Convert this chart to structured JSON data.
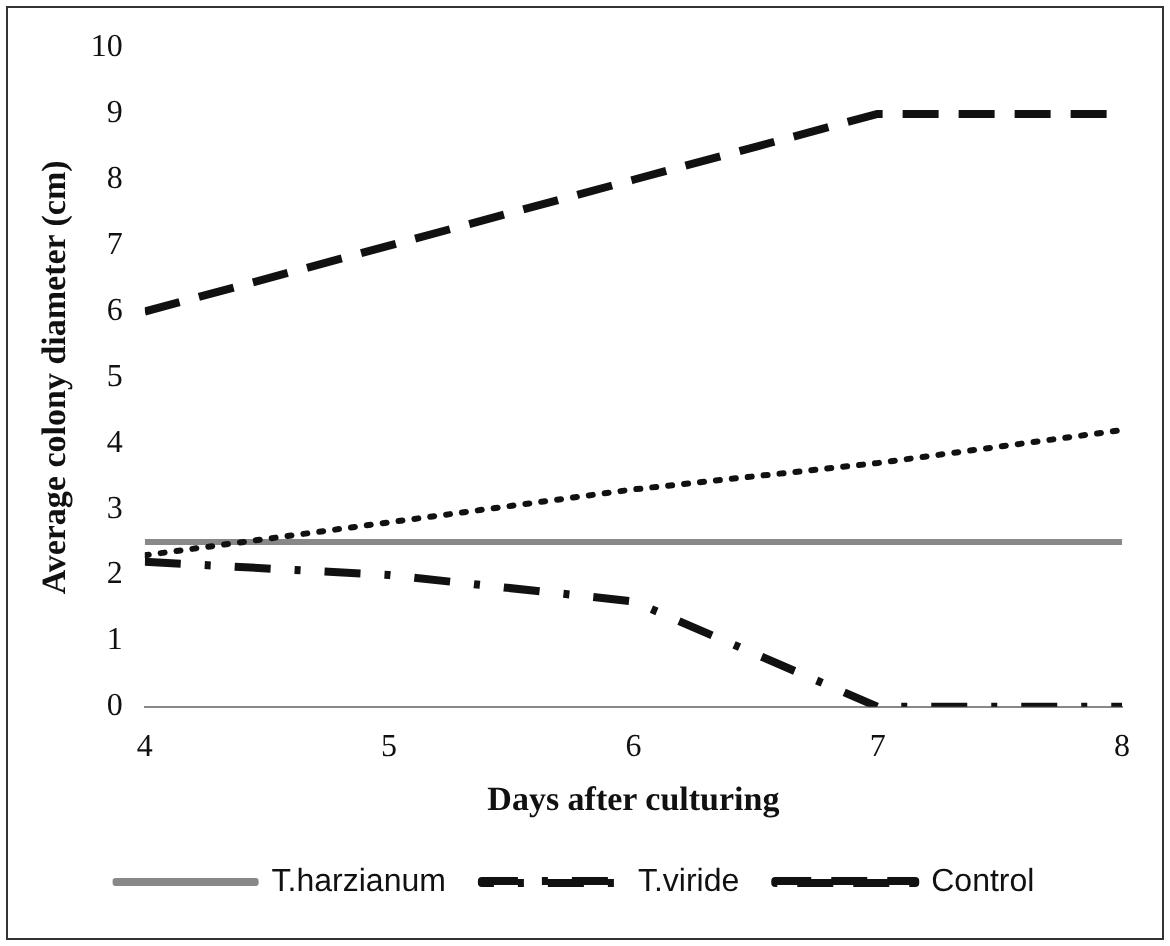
{
  "chart_data": {
    "type": "line",
    "xlabel": "Days after culturing",
    "ylabel": "Average colony diameter (cm)",
    "x": [
      4,
      5,
      6,
      7,
      8
    ],
    "xlim": [
      4,
      8
    ],
    "xticks": [
      4,
      5,
      6,
      7,
      8
    ],
    "ylim": [
      0,
      10
    ],
    "yticks": [
      0,
      1,
      2,
      3,
      4,
      5,
      6,
      7,
      8,
      9,
      10
    ],
    "grid": false,
    "legend": "bottom",
    "marker": "none",
    "series": [
      {
        "color": "#111111",
        "line_style": "dotted",
        "values": [
          2.3,
          2.8,
          3.3,
          3.7,
          4.2
        ]
      },
      {
        "name": "T.harzianum",
        "color": "#888888",
        "line_style": "solid",
        "values": [
          2.5,
          2.5,
          2.5,
          2.5,
          2.5
        ]
      },
      {
        "name": "T.viride",
        "color": "#111111",
        "line_style": "dashdot",
        "values": [
          2.2,
          2.0,
          1.6,
          0,
          0
        ]
      },
      {
        "name": "Control",
        "color": "#111111",
        "line_style": "dashed",
        "values": [
          6,
          7,
          8,
          9,
          9
        ]
      }
    ]
  }
}
